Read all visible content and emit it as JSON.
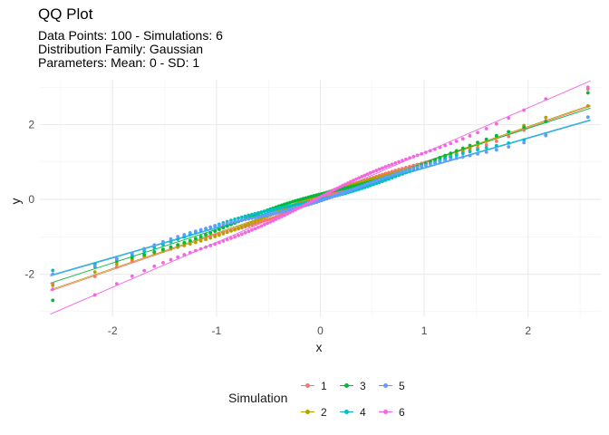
{
  "title": "QQ Plot",
  "subtitle": {
    "line1": "Data Points: 100 - Simulations: 6",
    "line2": "Distribution Family: Gaussian",
    "line3": "Parameters: Mean: 0 - SD: 1"
  },
  "chart_data": {
    "type": "scatter",
    "xlabel": "x",
    "ylabel": "y",
    "xlim": [
      -2.7,
      2.7
    ],
    "ylim": [
      -3.15,
      3.2
    ],
    "x_ticks": [
      -2,
      -1,
      0,
      1,
      2
    ],
    "y_ticks": [
      -2,
      0,
      2
    ],
    "x_tick_labels": [
      "-2",
      "-1",
      "0",
      "1",
      "2"
    ],
    "y_tick_labels": [
      "-2",
      "0",
      "2"
    ],
    "grid": true,
    "legend_position": "bottom",
    "legend_title": "Simulation",
    "n_points": 100,
    "series": [
      {
        "name": "1",
        "color": "#F8766D",
        "slope": 0.95,
        "intercept": 0.02,
        "min": -2.25,
        "max": 2.95
      },
      {
        "name": "2",
        "color": "#B79F00",
        "slope": 0.95,
        "intercept": 0.05,
        "min": -2.3,
        "max": 2.5
      },
      {
        "name": "3",
        "color": "#00BA38",
        "slope": 0.9,
        "intercept": 0.1,
        "min": -2.7,
        "max": 2.85
      },
      {
        "name": "4",
        "color": "#00BFC4",
        "slope": 0.8,
        "intercept": 0.05,
        "min": -1.9,
        "max": 2.2
      },
      {
        "name": "5",
        "color": "#619CFF",
        "slope": 0.8,
        "intercept": 0.03,
        "min": -2.0,
        "max": 2.2
      },
      {
        "name": "6",
        "color": "#F564E3",
        "slope": 1.2,
        "intercept": 0.05,
        "min": -2.4,
        "max": 3.0
      }
    ]
  }
}
